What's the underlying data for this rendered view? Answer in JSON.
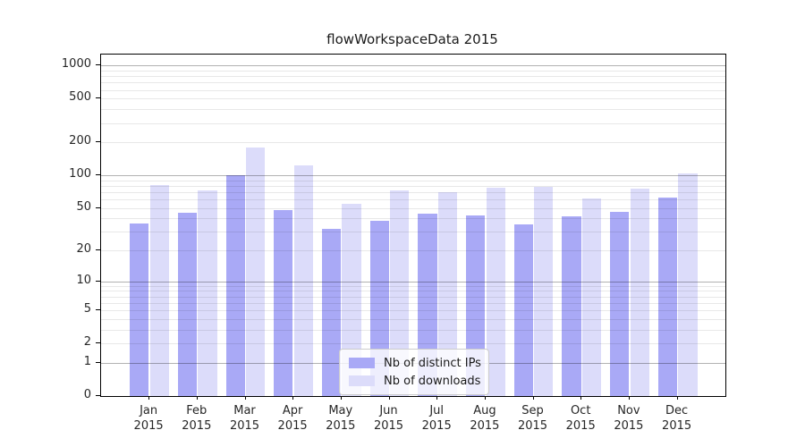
{
  "chart_data": {
    "type": "bar",
    "title": "flowWorkspaceData 2015",
    "categories": [
      "Jan",
      "Feb",
      "Mar",
      "Apr",
      "May",
      "Jun",
      "Jul",
      "Aug",
      "Sep",
      "Oct",
      "Nov",
      "Dec"
    ],
    "category_year": "2015",
    "series": [
      {
        "name": "Nb of distinct IPs",
        "color": "#a9a9f6",
        "values": [
          36,
          45,
          100,
          48,
          32,
          38,
          44,
          43,
          35,
          42,
          46,
          62
        ]
      },
      {
        "name": "Nb of downloads",
        "color": "#dcdcfa",
        "values": [
          81,
          73,
          178,
          123,
          55,
          73,
          70,
          77,
          78,
          61,
          75,
          105
        ]
      }
    ],
    "xlabel": "",
    "ylabel": "",
    "yscale": "log1p",
    "yticks": [
      0,
      1,
      2,
      5,
      10,
      20,
      50,
      100,
      200,
      500,
      1000
    ],
    "ylim": [
      0,
      1260
    ],
    "grid": true,
    "minor_grid": true,
    "legend_position": "bottom-center"
  },
  "colors": {
    "major_gridline": "#b3b3b3",
    "minor_gridline": "#e8e8e8",
    "axis_frame": "#000000",
    "text": "#262626"
  }
}
